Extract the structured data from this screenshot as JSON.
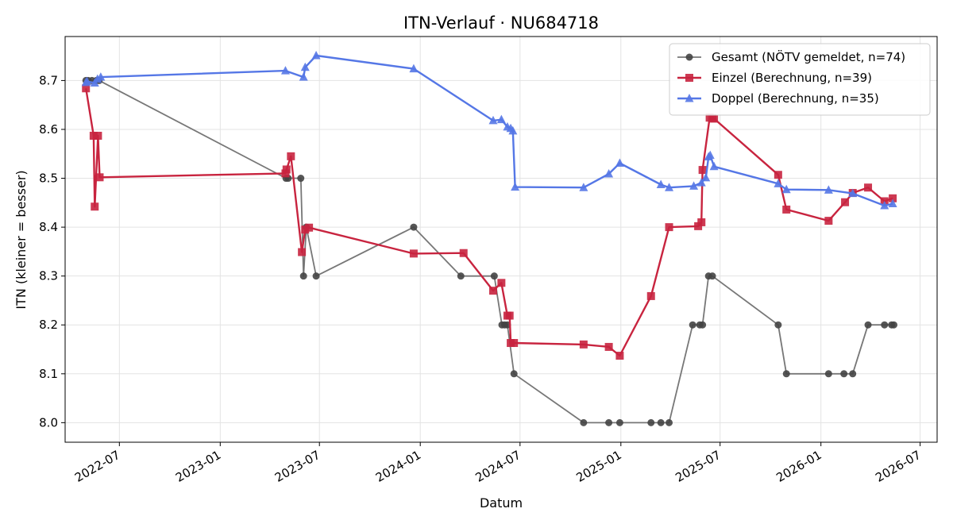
{
  "chart_data": {
    "type": "line",
    "title": "ITN-Verlauf · NU684718",
    "xlabel": "Datum",
    "ylabel": "ITN  (kleiner = besser)",
    "x_range": [
      "2022-03-24",
      "2026-08-01"
    ],
    "ylim": [
      7.96,
      8.79
    ],
    "x_ticks": [
      "2022-07-01",
      "2023-01-01",
      "2023-07-01",
      "2024-01-01",
      "2024-07-01",
      "2025-01-01",
      "2025-07-01",
      "2026-01-01",
      "2026-07-01"
    ],
    "x_tick_labels": [
      "2022-07",
      "2023-01",
      "2023-07",
      "2024-01",
      "2024-07",
      "2025-01",
      "2025-07",
      "2026-01",
      "2026-07"
    ],
    "y_ticks": [
      8.0,
      8.1,
      8.2,
      8.3,
      8.4,
      8.5,
      8.6,
      8.7
    ],
    "y_tick_labels": [
      "8.0",
      "8.1",
      "8.2",
      "8.3",
      "8.4",
      "8.5",
      "8.6",
      "8.7"
    ],
    "grid": true,
    "legend_position": "top-right",
    "series": [
      {
        "name": "Gesamt (NÖTV gemeldet, n=74)",
        "color": "#777777",
        "marker": "circle",
        "points": [
          [
            "2022-05-01",
            8.7
          ],
          [
            "2022-05-05",
            8.7
          ],
          [
            "2022-05-12",
            8.7
          ],
          [
            "2022-05-20",
            8.7
          ],
          [
            "2022-05-25",
            8.7
          ],
          [
            "2023-05-01",
            8.5
          ],
          [
            "2023-05-05",
            8.5
          ],
          [
            "2023-05-28",
            8.5
          ],
          [
            "2023-06-02",
            8.3
          ],
          [
            "2023-06-07",
            8.4
          ],
          [
            "2023-06-25",
            8.3
          ],
          [
            "2023-12-20",
            8.4
          ],
          [
            "2024-03-15",
            8.3
          ],
          [
            "2024-05-15",
            8.3
          ],
          [
            "2024-05-29",
            8.2
          ],
          [
            "2024-06-03",
            8.2
          ],
          [
            "2024-06-08",
            8.2
          ],
          [
            "2024-06-20",
            8.1
          ],
          [
            "2024-10-25",
            8.0
          ],
          [
            "2024-12-10",
            8.0
          ],
          [
            "2024-12-30",
            8.0
          ],
          [
            "2025-02-25",
            8.0
          ],
          [
            "2025-03-15",
            8.0
          ],
          [
            "2025-03-30",
            8.0
          ],
          [
            "2025-05-12",
            8.2
          ],
          [
            "2025-05-25",
            8.2
          ],
          [
            "2025-05-30",
            8.2
          ],
          [
            "2025-06-10",
            8.3
          ],
          [
            "2025-06-17",
            8.3
          ],
          [
            "2025-10-15",
            8.2
          ],
          [
            "2025-10-30",
            8.1
          ],
          [
            "2026-01-15",
            8.1
          ],
          [
            "2026-02-12",
            8.1
          ],
          [
            "2026-02-28",
            8.1
          ],
          [
            "2026-03-28",
            8.2
          ],
          [
            "2026-04-27",
            8.2
          ],
          [
            "2026-05-10",
            8.2
          ],
          [
            "2026-05-14",
            8.2
          ]
        ]
      },
      {
        "name": "Einzel (Berechnung, n=39)",
        "color": "#c8243f",
        "marker": "square",
        "points": [
          [
            "2022-05-01",
            8.684
          ],
          [
            "2022-05-15",
            8.587
          ],
          [
            "2022-05-17",
            8.442
          ],
          [
            "2022-05-23",
            8.587
          ],
          [
            "2022-05-26",
            8.502
          ],
          [
            "2023-04-30",
            8.51
          ],
          [
            "2023-05-02",
            8.518
          ],
          [
            "2023-05-10",
            8.545
          ],
          [
            "2023-05-30",
            8.349
          ],
          [
            "2023-06-05",
            8.395
          ],
          [
            "2023-06-12",
            8.399
          ],
          [
            "2023-12-20",
            8.346
          ],
          [
            "2024-03-20",
            8.347
          ],
          [
            "2024-05-13",
            8.27
          ],
          [
            "2024-05-28",
            8.286
          ],
          [
            "2024-06-08",
            8.219
          ],
          [
            "2024-06-12",
            8.219
          ],
          [
            "2024-06-14",
            8.163
          ],
          [
            "2024-06-20",
            8.163
          ],
          [
            "2024-10-25",
            8.16
          ],
          [
            "2024-12-10",
            8.155
          ],
          [
            "2024-12-30",
            8.137
          ],
          [
            "2025-02-25",
            8.259
          ],
          [
            "2025-03-30",
            8.4
          ],
          [
            "2025-05-22",
            8.402
          ],
          [
            "2025-05-28",
            8.41
          ],
          [
            "2025-05-30",
            8.517
          ],
          [
            "2025-06-12",
            8.624
          ],
          [
            "2025-06-17",
            8.623
          ],
          [
            "2025-06-20",
            8.622
          ],
          [
            "2025-10-15",
            8.507
          ],
          [
            "2025-10-30",
            8.436
          ],
          [
            "2026-01-15",
            8.413
          ],
          [
            "2026-02-14",
            8.451
          ],
          [
            "2026-02-28",
            8.47
          ],
          [
            "2026-03-28",
            8.481
          ],
          [
            "2026-04-27",
            8.453
          ],
          [
            "2026-05-12",
            8.459
          ]
        ]
      },
      {
        "name": "Doppel (Berechnung, n=35)",
        "color": "#5577e6",
        "marker": "triangle",
        "points": [
          [
            "2022-05-01",
            8.696
          ],
          [
            "2022-05-03",
            8.698
          ],
          [
            "2022-05-17",
            8.695
          ],
          [
            "2022-05-22",
            8.703
          ],
          [
            "2022-05-28",
            8.707
          ],
          [
            "2023-04-30",
            8.72
          ],
          [
            "2023-06-02",
            8.707
          ],
          [
            "2023-06-05",
            8.727
          ],
          [
            "2023-06-25",
            8.751
          ],
          [
            "2023-12-20",
            8.724
          ],
          [
            "2024-05-13",
            8.618
          ],
          [
            "2024-05-28",
            8.62
          ],
          [
            "2024-06-08",
            8.605
          ],
          [
            "2024-06-14",
            8.602
          ],
          [
            "2024-06-18",
            8.597
          ],
          [
            "2024-06-22",
            8.482
          ],
          [
            "2024-10-25",
            8.481
          ],
          [
            "2024-12-10",
            8.509
          ],
          [
            "2024-12-30",
            8.531
          ],
          [
            "2025-03-15",
            8.487
          ],
          [
            "2025-03-30",
            8.481
          ],
          [
            "2025-05-14",
            8.484
          ],
          [
            "2025-05-28",
            8.491
          ],
          [
            "2025-06-05",
            8.501
          ],
          [
            "2025-06-10",
            8.544
          ],
          [
            "2025-06-13",
            8.547
          ],
          [
            "2025-06-20",
            8.524
          ],
          [
            "2025-10-15",
            8.489
          ],
          [
            "2025-10-30",
            8.477
          ],
          [
            "2026-01-15",
            8.476
          ],
          [
            "2026-02-28",
            8.469
          ],
          [
            "2026-04-27",
            8.444
          ],
          [
            "2026-05-12",
            8.448
          ]
        ]
      }
    ]
  }
}
